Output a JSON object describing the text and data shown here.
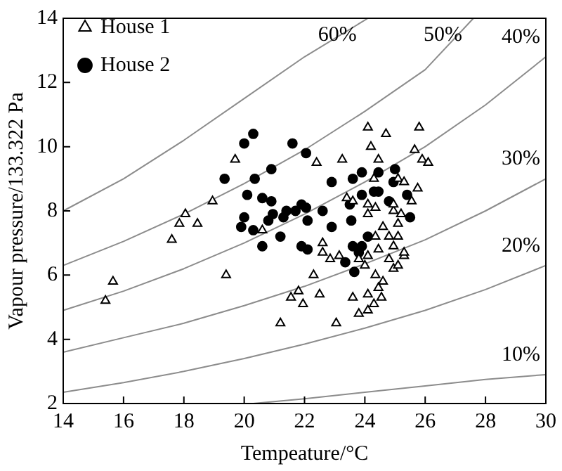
{
  "chart_data": {
    "type": "scatter",
    "xlabel": "Tempeature/°C",
    "ylabel": "Vapour pressure/133.322 Pa",
    "xlim": [
      14,
      30
    ],
    "xticks": [
      14,
      16,
      18,
      20,
      22,
      24,
      26,
      28,
      30
    ],
    "ylim": [
      2,
      14
    ],
    "yticks": [
      2,
      4,
      6,
      8,
      10,
      12,
      14
    ],
    "grid": false,
    "legend": "top left",
    "series": [
      {
        "name": "House 1",
        "marker": "triangle",
        "color": "#000000",
        "x": [
          24.1,
          24.7,
          25.8,
          24.2,
          25.65,
          24.45,
          25.9,
          26.1,
          23.25,
          22.4,
          19.7,
          18.95,
          23.4,
          23.6,
          24.1,
          25.75,
          25.1,
          25.3,
          24.3,
          24.95,
          18.05,
          17.85,
          18.45,
          17.6,
          15.65,
          15.4,
          19.4,
          20.6,
          22.6,
          22.85,
          23.15,
          22.3,
          21.8,
          21.55,
          21.95,
          22.5,
          21.2,
          23.05,
          23.6,
          23.8,
          24.1,
          24.3,
          24.55,
          24.1,
          24.45,
          24.6,
          24.35,
          24.95,
          25.1,
          24.8,
          25.3,
          24.1,
          24.45,
          24.95,
          25.3,
          24.35,
          24.8,
          25.1,
          24.6,
          25.1,
          25.2,
          24.95,
          25.55,
          24.1,
          24.35,
          22.6,
          24.0,
          23.8
        ],
        "values": [
          10.6,
          10.4,
          10.6,
          10.0,
          9.9,
          9.6,
          9.6,
          9.5,
          9.6,
          9.5,
          9.6,
          8.3,
          8.4,
          8.3,
          8.2,
          8.7,
          9.0,
          8.9,
          9.0,
          8.0,
          7.9,
          7.6,
          7.6,
          7.1,
          5.8,
          5.2,
          6.0,
          7.4,
          6.7,
          6.5,
          6.6,
          6.0,
          5.5,
          5.3,
          5.1,
          5.4,
          4.5,
          4.5,
          5.3,
          4.8,
          4.9,
          5.1,
          5.3,
          5.4,
          5.6,
          5.8,
          6.0,
          6.2,
          6.3,
          6.5,
          6.6,
          6.6,
          6.8,
          6.9,
          6.7,
          7.2,
          7.2,
          7.2,
          7.5,
          7.6,
          7.9,
          8.2,
          8.3,
          7.9,
          8.1,
          7.0,
          6.3,
          6.5
        ]
      },
      {
        "name": "House 2",
        "marker": "circle",
        "color": "#000000",
        "x": [
          20.3,
          20.0,
          21.6,
          22.05,
          20.9,
          19.35,
          20.35,
          22.9,
          23.6,
          23.9,
          24.45,
          25.0,
          20.1,
          20.6,
          20.9,
          21.9,
          24.45,
          24.95,
          23.5,
          23.9,
          20.95,
          21.4,
          21.7,
          22.05,
          22.6,
          20.0,
          20.8,
          21.3,
          22.1,
          19.9,
          20.3,
          21.2,
          20.6,
          21.9,
          22.1,
          22.9,
          23.55,
          24.1,
          23.9,
          23.6,
          23.35,
          23.65,
          23.8,
          25.5,
          25.4,
          24.3,
          24.8
        ],
        "values": [
          10.4,
          10.1,
          10.1,
          9.8,
          9.3,
          9.0,
          9.0,
          8.9,
          9.0,
          9.2,
          9.2,
          9.3,
          8.5,
          8.4,
          8.3,
          8.2,
          8.6,
          8.9,
          8.2,
          8.5,
          7.9,
          8.0,
          8.0,
          8.1,
          8.0,
          7.8,
          7.7,
          7.8,
          7.7,
          7.5,
          7.4,
          7.2,
          6.9,
          6.9,
          6.8,
          7.5,
          7.7,
          7.2,
          6.9,
          6.9,
          6.4,
          6.1,
          6.7,
          7.8,
          8.5,
          8.6,
          8.3
        ]
      },
      {
        "name": "60%",
        "type": "line",
        "marker": "none",
        "color": "#8c8c8c",
        "x": [
          14,
          16,
          18,
          20,
          22,
          24.1
        ],
        "values": [
          8.0,
          9.0,
          10.2,
          11.5,
          12.8,
          14
        ]
      },
      {
        "name": "50%",
        "type": "line",
        "marker": "none",
        "color": "#8c8c8c",
        "x": [
          14,
          16,
          18,
          20,
          22,
          24,
          26,
          27.6
        ],
        "values": [
          6.3,
          7.05,
          7.9,
          8.85,
          9.9,
          11.1,
          12.4,
          14
        ]
      },
      {
        "name": "40%",
        "type": "line",
        "marker": "none",
        "color": "#8c8c8c",
        "x": [
          14,
          16,
          18,
          20,
          22,
          24,
          26,
          28,
          30
        ],
        "values": [
          4.9,
          5.5,
          6.2,
          7.0,
          7.9,
          8.9,
          10.0,
          11.3,
          12.8
        ]
      },
      {
        "name": "30%",
        "type": "line",
        "marker": "none",
        "color": "#8c8c8c",
        "x": [
          14,
          16,
          18,
          20,
          22,
          24,
          26,
          28,
          30
        ],
        "values": [
          3.6,
          4.05,
          4.5,
          5.05,
          5.65,
          6.35,
          7.1,
          8.0,
          9.0
        ]
      },
      {
        "name": "20%",
        "type": "line",
        "marker": "none",
        "color": "#8c8c8c",
        "x": [
          14,
          16,
          18,
          20,
          22,
          24,
          26,
          28,
          30
        ],
        "values": [
          2.35,
          2.65,
          3.0,
          3.4,
          3.85,
          4.35,
          4.9,
          5.55,
          6.3
        ]
      },
      {
        "name": "10%",
        "type": "line",
        "marker": "none",
        "color": "#8c8c8c",
        "x": [
          20.3,
          22,
          24,
          26,
          28,
          30
        ],
        "values": [
          2.0,
          2.15,
          2.35,
          2.55,
          2.75,
          2.9
        ]
      }
    ]
  }
}
